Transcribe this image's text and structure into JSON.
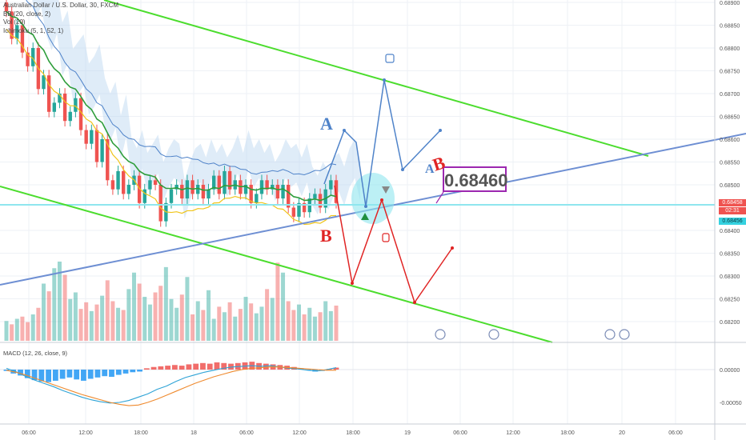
{
  "legend": {
    "symbol": "Australian Dollar / U.S. Dollar, 30, FXCM",
    "bb": "BB (20, close, 2)",
    "vol": "Vol (20)",
    "ichimoku": "Ichimoku (5, 1, 52, 1)",
    "macd": "MACD (12, 26, close, 9)"
  },
  "price_tags": {
    "current": "0.68458",
    "countdown": "02:31",
    "cyan": "0.68456"
  },
  "callout_value": "0.68460",
  "annotations": {
    "blue_top": "A",
    "blue_right": "A",
    "red_right": "B",
    "red_bottom": "B"
  },
  "colors": {
    "bull": "#26a69a",
    "bear": "#ef5350",
    "trend_green": "#4cdd2e",
    "trend_blue": "#6e8fd3",
    "blue_arrow": "#4f83c9",
    "red_arrow": "#e02424",
    "cloud": "#b8d4f0",
    "ema": "#2e9d3a",
    "bb_band": "#f0c419",
    "highlight": "#8fe6ee"
  },
  "chart_data": {
    "type": "candlestick",
    "price_axis": [
      "0.68900",
      "0.68850",
      "0.68800",
      "0.68750",
      "0.68700",
      "0.68650",
      "0.68600",
      "0.68550",
      "0.68500",
      "0.68400",
      "0.68350",
      "0.68300",
      "0.68250",
      "0.68200"
    ],
    "macd_axis": [
      "0.00000",
      "-0.00050"
    ],
    "time_axis": [
      "06:00",
      "12:00",
      "18:00",
      "18",
      "06:00",
      "12:00",
      "18:00",
      "19",
      "06:00",
      "12:00",
      "18:00",
      "20",
      "06:00"
    ],
    "closes": [
      0.6888,
      0.6882,
      0.6885,
      0.6879,
      0.6876,
      0.688,
      0.6871,
      0.6874,
      0.6866,
      0.6868,
      0.687,
      0.6864,
      0.6866,
      0.6869,
      0.6862,
      0.6859,
      0.6862,
      0.6855,
      0.686,
      0.6851,
      0.6849,
      0.6853,
      0.6848,
      0.685,
      0.6852,
      0.6846,
      0.6849,
      0.6851,
      0.685,
      0.6842,
      0.6846,
      0.6849,
      0.685,
      0.6847,
      0.6851,
      0.6848,
      0.685,
      0.6847,
      0.6849,
      0.6852,
      0.6848,
      0.6853,
      0.6849,
      0.6851,
      0.6848,
      0.685,
      0.6846,
      0.6848,
      0.6851,
      0.6849,
      0.685,
      0.6847,
      0.685,
      0.6845,
      0.6843,
      0.6846,
      0.6844,
      0.6847,
      0.6848,
      0.6845,
      0.6849,
      0.6851,
      0.6846
    ],
    "volumes": [
      18,
      15,
      20,
      22,
      17,
      24,
      30,
      52,
      45,
      66,
      72,
      60,
      38,
      44,
      29,
      35,
      27,
      33,
      41,
      55,
      36,
      30,
      28,
      47,
      62,
      52,
      40,
      33,
      44,
      50,
      67,
      38,
      30,
      42,
      58,
      24,
      36,
      28,
      46,
      20,
      31,
      26,
      35,
      22,
      29,
      40,
      34,
      25,
      31,
      47,
      39,
      71,
      62,
      36,
      28,
      33,
      24,
      30,
      22,
      26,
      36,
      27,
      32
    ],
    "macd_hist": [
      -2e-05,
      -6e-05,
      -9e-05,
      -0.00013,
      -0.00016,
      -0.00018,
      -0.00019,
      -0.00017,
      -0.00014,
      -0.00012,
      -0.00015,
      -0.00017,
      -0.00014,
      -0.00012,
      -0.0001,
      -0.00011,
      -8e-05,
      -6e-05,
      -4e-05,
      -3e-05,
      2e-05,
      4e-05,
      5e-05,
      6e-05,
      7e-05,
      6e-05,
      8e-05,
      9e-05,
      0.0001,
      9e-05,
      0.00011,
      0.0001,
      9e-05,
      0.0001,
      0.00011,
      0.00012,
      0.0001,
      9e-05,
      8e-05,
      7e-05,
      6e-05,
      4e-05,
      2e-05,
      -1e-05,
      -3e-05,
      -2e-05,
      1e-05,
      3e-05
    ],
    "macd_line": [
      2e-05,
      -3e-05,
      -0.0001,
      -0.00016,
      -0.00021,
      -0.00026,
      -0.00032,
      -0.00037,
      -0.00042,
      -0.00046,
      -0.00049,
      -0.00051,
      -0.0005,
      -0.00047,
      -0.00042,
      -0.00037,
      -0.0003,
      -0.00025,
      -0.00018,
      -0.00012,
      -8e-05,
      -4e-05,
      -1e-05,
      2e-05,
      4e-05,
      5e-05,
      6e-05,
      5e-05,
      6e-05,
      4e-05,
      2e-05,
      1e-05,
      -1e-05,
      -2e-05,
      0.0,
      3e-05
    ],
    "signal_line": [
      -1e-05,
      -4e-05,
      -8e-05,
      -0.00013,
      -0.00018,
      -0.00023,
      -0.00028,
      -0.00033,
      -0.00038,
      -0.00042,
      -0.00046,
      -0.0005,
      -0.00053,
      -0.00055,
      -0.00054,
      -0.0005,
      -0.00045,
      -0.00039,
      -0.00033,
      -0.00027,
      -0.00021,
      -0.00016,
      -0.00011,
      -7e-05,
      -3e-05,
      0.0,
      2e-05,
      3e-05,
      4e-05,
      4e-05,
      3e-05,
      2e-05,
      1e-05,
      0.0,
      -1e-05,
      -1e-05
    ]
  }
}
